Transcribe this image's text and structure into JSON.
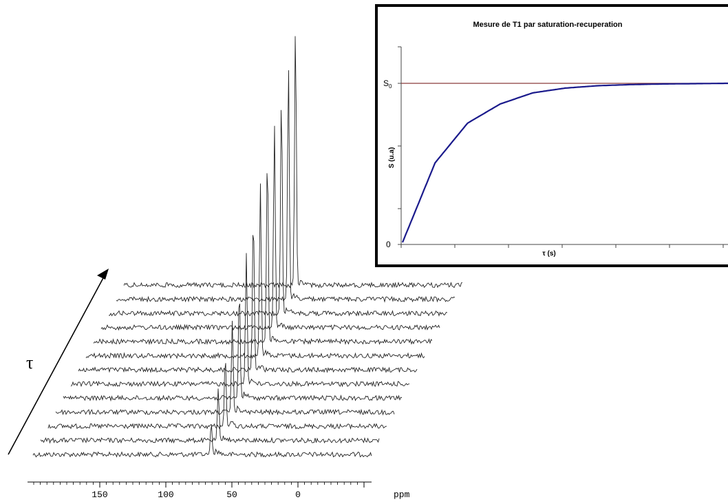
{
  "stacked_spectra": {
    "tau_label": "τ",
    "ppm_label": "ppm",
    "ticks": [
      "150",
      "100",
      "50",
      "0"
    ]
  },
  "inset": {
    "title": "Mesure de T1 par saturation-recuperation",
    "ylabel": "S (u.a)",
    "xlabel": "τ (s)",
    "s0_label": "S",
    "s0_subscript": "0",
    "zero_label": "0"
  },
  "colors": {
    "curve": "#1a1a8c",
    "s0_line": "#8b3a3a",
    "spectra": "#222222"
  },
  "chart_data": [
    {
      "type": "line",
      "description_kind": "stacked NMR spectra (saturation-recovery series)",
      "xlabel": "ppm",
      "x_ticks": [
        150,
        100,
        50,
        0
      ],
      "x_reversed": true,
      "series_count": 13,
      "peak_position_ppm": 0,
      "peak_heights_relative": [
        0.12,
        0.2,
        0.27,
        0.35,
        0.42,
        0.5,
        0.6,
        0.66,
        0.72,
        0.78,
        0.84,
        0.9,
        1.0
      ]
    },
    {
      "type": "line",
      "title": "Mesure de T1 par saturation-recuperation",
      "xlabel": "τ (s)",
      "ylabel": "S (u.a)",
      "y_ticks": [
        "0",
        "S0"
      ],
      "series": [
        {
          "x": [
            0,
            1,
            2,
            3,
            4,
            5,
            6,
            7,
            8,
            9,
            10
          ],
          "values": [
            0.0,
            0.5,
            0.75,
            0.87,
            0.94,
            0.97,
            0.985,
            0.992,
            0.996,
            0.998,
            1.0
          ]
        }
      ],
      "reference_line": {
        "value": 1.0,
        "label": "S0"
      },
      "grid": false
    }
  ]
}
